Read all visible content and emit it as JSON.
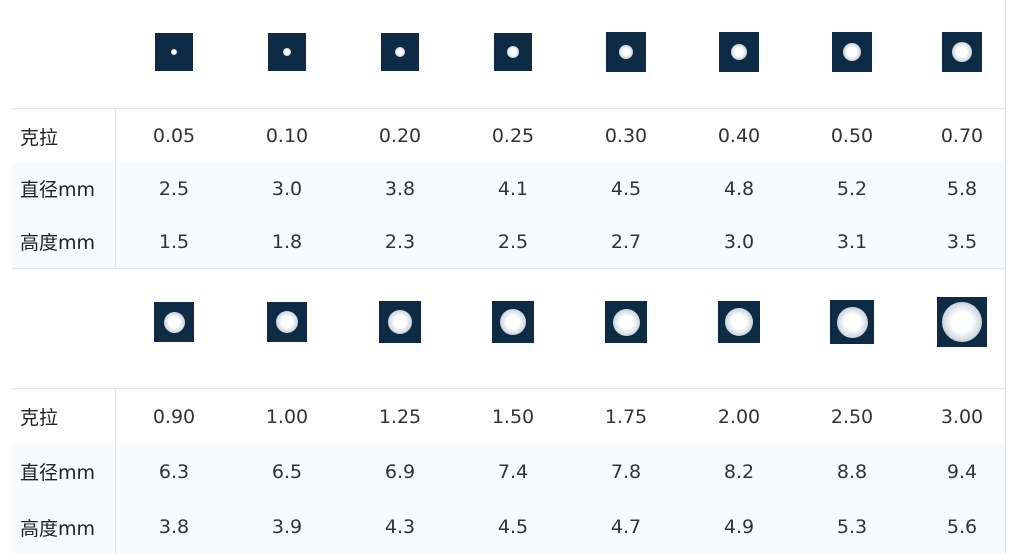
{
  "tables": [
    {
      "rows": [
        {
          "label": "克拉",
          "values": [
            "0.05",
            "0.10",
            "0.20",
            "0.25",
            "0.30",
            "0.40",
            "0.50",
            "0.70"
          ]
        },
        {
          "label": "直径mm",
          "values": [
            "2.5",
            "3.0",
            "3.8",
            "4.1",
            "4.5",
            "4.8",
            "5.2",
            "5.8"
          ]
        },
        {
          "label": "高度mm",
          "values": [
            "1.5",
            "1.8",
            "2.3",
            "2.5",
            "2.7",
            "3.0",
            "3.1",
            "3.5"
          ]
        }
      ]
    },
    {
      "rows": [
        {
          "label": "克拉",
          "values": [
            "0.90",
            "1.00",
            "1.25",
            "1.50",
            "1.75",
            "2.00",
            "2.50",
            "3.00"
          ]
        },
        {
          "label": "直径mm",
          "values": [
            "6.3",
            "6.5",
            "6.9",
            "7.4",
            "7.8",
            "8.2",
            "8.8",
            "9.4"
          ]
        },
        {
          "label": "高度mm",
          "values": [
            "3.8",
            "3.9",
            "4.3",
            "4.5",
            "4.7",
            "4.9",
            "5.3",
            "5.6"
          ]
        }
      ]
    }
  ]
}
